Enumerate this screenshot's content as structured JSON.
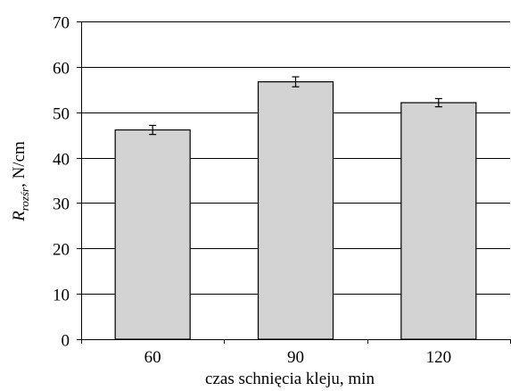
{
  "chart_data": {
    "type": "bar",
    "categories": [
      "60",
      "90",
      "120"
    ],
    "values": [
      46.1,
      56.7,
      52.1
    ],
    "errors": [
      1.0,
      1.1,
      0.9
    ],
    "xlabel": "czas schnięcia kleju, min",
    "ylabel": {
      "symbol": "R",
      "subscript": "rozśr",
      "suffix": ", N/cm"
    },
    "ylim": [
      0,
      70
    ],
    "yticks": [
      "0",
      "10",
      "20",
      "30",
      "40",
      "50",
      "60",
      "70"
    ],
    "grid": true,
    "legend": "none",
    "colors": {
      "bar_fill": "#d3d3d3",
      "bar_stroke": "#000000",
      "grid": "#000000"
    }
  }
}
